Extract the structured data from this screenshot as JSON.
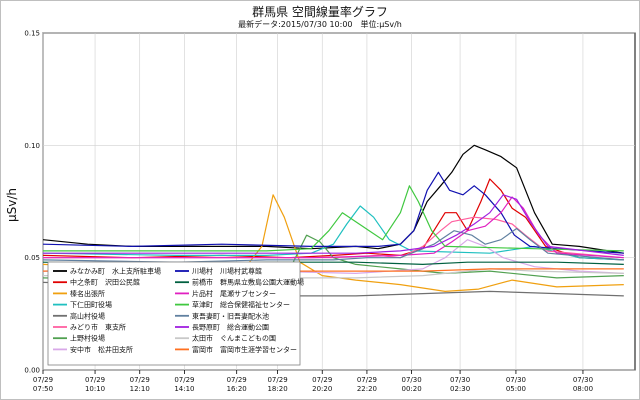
{
  "chart_data": {
    "type": "line",
    "title": "群馬県 空間線量率グラフ",
    "subtitle": "最新データ:2015/07/30 10:00　単位:μSv/h",
    "ylabel": "μSv/h",
    "xlabel": "",
    "ylim": [
      0,
      0.15
    ],
    "yticks": [
      "0.00",
      "0.05",
      "0.10",
      "0.15"
    ],
    "grid": true,
    "legend_position": "lower-left",
    "x_ticks": [
      {
        "t": 0,
        "date": "07/29",
        "time": "07:50"
      },
      {
        "t": 2.33,
        "date": "07/29",
        "time": "10:10"
      },
      {
        "t": 4.33,
        "date": "07/29",
        "time": "12:10"
      },
      {
        "t": 6.33,
        "date": "07/29",
        "time": "14:10"
      },
      {
        "t": 8.67,
        "date": "07/29",
        "time": "16:20"
      },
      {
        "t": 10.5,
        "date": "07/29",
        "time": "18:20"
      },
      {
        "t": 12.5,
        "date": "07/29",
        "time": "20:20"
      },
      {
        "t": 14.5,
        "date": "07/29",
        "time": "22:20"
      },
      {
        "t": 16.5,
        "date": "07/30",
        "time": "00:20"
      },
      {
        "t": 18.67,
        "date": "07/30",
        "time": "02:30"
      },
      {
        "t": 21.17,
        "date": "07/30",
        "time": "05:00"
      },
      {
        "t": 24.17,
        "date": "07/30",
        "time": "08:00"
      }
    ],
    "x_range": [
      0,
      26.5
    ],
    "series": [
      {
        "name": "みなかみ町　水上支所駐車場",
        "color": "#000000",
        "points": [
          [
            0,
            0.058
          ],
          [
            2,
            0.056
          ],
          [
            4,
            0.055
          ],
          [
            6,
            0.055
          ],
          [
            8,
            0.055
          ],
          [
            10,
            0.055
          ],
          [
            12,
            0.054
          ],
          [
            14,
            0.055
          ],
          [
            15,
            0.054
          ],
          [
            16,
            0.056
          ],
          [
            16.6,
            0.062
          ],
          [
            17.2,
            0.075
          ],
          [
            17.8,
            0.082
          ],
          [
            18.3,
            0.088
          ],
          [
            18.8,
            0.096
          ],
          [
            19.3,
            0.1
          ],
          [
            19.8,
            0.098
          ],
          [
            20.5,
            0.095
          ],
          [
            21.2,
            0.09
          ],
          [
            22,
            0.07
          ],
          [
            22.8,
            0.056
          ],
          [
            24,
            0.055
          ],
          [
            26,
            0.052
          ]
        ]
      },
      {
        "name": "中之条町　沢田公民館",
        "color": "#e00000",
        "points": [
          [
            0,
            0.051
          ],
          [
            4,
            0.05
          ],
          [
            8,
            0.051
          ],
          [
            11,
            0.05
          ],
          [
            13,
            0.051
          ],
          [
            14.5,
            0.052
          ],
          [
            16,
            0.051
          ],
          [
            17,
            0.054
          ],
          [
            17.5,
            0.062
          ],
          [
            18,
            0.07
          ],
          [
            18.5,
            0.07
          ],
          [
            19,
            0.062
          ],
          [
            19.6,
            0.075
          ],
          [
            20,
            0.085
          ],
          [
            20.5,
            0.08
          ],
          [
            21,
            0.072
          ],
          [
            21.6,
            0.068
          ],
          [
            22.5,
            0.055
          ],
          [
            24,
            0.05
          ],
          [
            26,
            0.049
          ]
        ]
      },
      {
        "name": "榛名出張所",
        "color": "#f0a010",
        "points": [
          [
            0,
            0.047
          ],
          [
            5,
            0.045
          ],
          [
            9,
            0.045
          ],
          [
            9.8,
            0.055
          ],
          [
            10.3,
            0.078
          ],
          [
            10.8,
            0.068
          ],
          [
            11.5,
            0.048
          ],
          [
            12.5,
            0.042
          ],
          [
            14,
            0.04
          ],
          [
            16,
            0.038
          ],
          [
            18,
            0.035
          ],
          [
            19.5,
            0.036
          ],
          [
            21,
            0.04
          ],
          [
            23,
            0.037
          ],
          [
            26,
            0.038
          ]
        ]
      },
      {
        "name": "下仁田町役場",
        "color": "#20c0c0",
        "points": [
          [
            0,
            0.052
          ],
          [
            6,
            0.051
          ],
          [
            10,
            0.051
          ],
          [
            12,
            0.052
          ],
          [
            13,
            0.056
          ],
          [
            13.6,
            0.065
          ],
          [
            14.2,
            0.073
          ],
          [
            14.8,
            0.068
          ],
          [
            15.5,
            0.058
          ],
          [
            16.5,
            0.053
          ],
          [
            20,
            0.052
          ],
          [
            22,
            0.055
          ],
          [
            24,
            0.05
          ],
          [
            26,
            0.049
          ]
        ]
      },
      {
        "name": "高山村役場",
        "color": "#707070",
        "points": [
          [
            0,
            0.039
          ],
          [
            4,
            0.038
          ],
          [
            9,
            0.037
          ],
          [
            9.8,
            0.04
          ],
          [
            10.5,
            0.036
          ],
          [
            11.5,
            0.033
          ],
          [
            14,
            0.033
          ],
          [
            17,
            0.034
          ],
          [
            20,
            0.035
          ],
          [
            23,
            0.034
          ],
          [
            26,
            0.033
          ]
        ]
      },
      {
        "name": "みどり市　東支所",
        "color": "#ff60a0",
        "points": [
          [
            0,
            0.05
          ],
          [
            6,
            0.05
          ],
          [
            10,
            0.05
          ],
          [
            13,
            0.05
          ],
          [
            15,
            0.051
          ],
          [
            16,
            0.05
          ],
          [
            17,
            0.055
          ],
          [
            17.8,
            0.062
          ],
          [
            18.3,
            0.066
          ],
          [
            19.3,
            0.068
          ],
          [
            20.3,
            0.067
          ],
          [
            21,
            0.065
          ],
          [
            21.6,
            0.06
          ],
          [
            22.5,
            0.053
          ],
          [
            26,
            0.05
          ]
        ]
      },
      {
        "name": "上野村役場",
        "color": "#50a050",
        "points": [
          [
            0,
            0.041
          ],
          [
            5,
            0.04
          ],
          [
            9.5,
            0.04
          ],
          [
            10.5,
            0.042
          ],
          [
            11.2,
            0.048
          ],
          [
            11.8,
            0.06
          ],
          [
            12.4,
            0.057
          ],
          [
            13,
            0.05
          ],
          [
            14,
            0.047
          ],
          [
            16,
            0.045
          ],
          [
            18,
            0.043
          ],
          [
            20,
            0.044
          ],
          [
            23,
            0.041
          ],
          [
            26,
            0.042
          ]
        ]
      },
      {
        "name": "安中市　松井田支所",
        "color": "#d8a8e8",
        "points": [
          [
            0,
            0.044
          ],
          [
            5,
            0.043
          ],
          [
            10,
            0.044
          ],
          [
            14,
            0.043
          ],
          [
            17,
            0.045
          ],
          [
            18,
            0.05
          ],
          [
            19,
            0.058
          ],
          [
            19.8,
            0.055
          ],
          [
            20.6,
            0.05
          ],
          [
            22,
            0.046
          ],
          [
            24,
            0.044
          ],
          [
            26,
            0.043
          ]
        ]
      },
      {
        "name": "川場村　川場村武尊館",
        "color": "#1010b0",
        "points": [
          [
            0,
            0.056
          ],
          [
            4,
            0.055
          ],
          [
            8,
            0.056
          ],
          [
            12,
            0.055
          ],
          [
            15,
            0.055
          ],
          [
            16,
            0.056
          ],
          [
            16.6,
            0.062
          ],
          [
            17.2,
            0.08
          ],
          [
            17.7,
            0.088
          ],
          [
            18.2,
            0.08
          ],
          [
            18.8,
            0.078
          ],
          [
            19.3,
            0.082
          ],
          [
            19.8,
            0.078
          ],
          [
            20.5,
            0.07
          ],
          [
            21.1,
            0.06
          ],
          [
            21.8,
            0.055
          ],
          [
            23,
            0.054
          ],
          [
            26,
            0.052
          ]
        ]
      },
      {
        "name": "前橋市　群馬県立敷島公園大運動場",
        "color": "#006040",
        "points": [
          [
            0,
            0.048
          ],
          [
            6,
            0.047
          ],
          [
            10,
            0.048
          ],
          [
            14,
            0.048
          ],
          [
            17,
            0.047
          ],
          [
            19,
            0.048
          ],
          [
            21,
            0.048
          ],
          [
            23,
            0.048
          ],
          [
            26,
            0.047
          ]
        ]
      },
      {
        "name": "片品村　尾瀬サブセンター",
        "color": "#e020c0",
        "points": [
          [
            0,
            0.05
          ],
          [
            8,
            0.05
          ],
          [
            12,
            0.05
          ],
          [
            16,
            0.051
          ],
          [
            17.5,
            0.052
          ],
          [
            18.3,
            0.057
          ],
          [
            19,
            0.062
          ],
          [
            19.8,
            0.064
          ],
          [
            20.5,
            0.07
          ],
          [
            21,
            0.077
          ],
          [
            21.5,
            0.072
          ],
          [
            22.2,
            0.06
          ],
          [
            23,
            0.052
          ],
          [
            26,
            0.05
          ]
        ]
      },
      {
        "name": "草津町　総合保健福祉センター",
        "color": "#40c840",
        "points": [
          [
            0,
            0.053
          ],
          [
            6,
            0.053
          ],
          [
            10,
            0.053
          ],
          [
            12,
            0.054
          ],
          [
            12.8,
            0.062
          ],
          [
            13.4,
            0.07
          ],
          [
            14,
            0.066
          ],
          [
            14.6,
            0.062
          ],
          [
            15.2,
            0.058
          ],
          [
            16,
            0.07
          ],
          [
            16.4,
            0.082
          ],
          [
            16.8,
            0.075
          ],
          [
            17.4,
            0.062
          ],
          [
            18,
            0.055
          ],
          [
            22,
            0.054
          ],
          [
            26,
            0.053
          ]
        ]
      },
      {
        "name": "東吾妻町・旧吾妻配水池",
        "color": "#6080a0",
        "points": [
          [
            0,
            0.049
          ],
          [
            6,
            0.048
          ],
          [
            10,
            0.049
          ],
          [
            13,
            0.049
          ],
          [
            14.5,
            0.05
          ],
          [
            16,
            0.05
          ],
          [
            17.5,
            0.056
          ],
          [
            18.4,
            0.062
          ],
          [
            19.2,
            0.06
          ],
          [
            19.8,
            0.056
          ],
          [
            20.5,
            0.058
          ],
          [
            21.2,
            0.063
          ],
          [
            21.8,
            0.058
          ],
          [
            22.6,
            0.052
          ],
          [
            26,
            0.049
          ]
        ]
      },
      {
        "name": "長野原町　総合運動公園",
        "color": "#a020e0",
        "points": [
          [
            0,
            0.052
          ],
          [
            6,
            0.052
          ],
          [
            10,
            0.052
          ],
          [
            14,
            0.052
          ],
          [
            16,
            0.053
          ],
          [
            17.5,
            0.055
          ],
          [
            18.5,
            0.06
          ],
          [
            19.3,
            0.065
          ],
          [
            20,
            0.07
          ],
          [
            20.6,
            0.078
          ],
          [
            21.2,
            0.076
          ],
          [
            21.8,
            0.066
          ],
          [
            22.6,
            0.055
          ],
          [
            26,
            0.051
          ]
        ]
      },
      {
        "name": "太田市　ぐんまこどもの国",
        "color": "#c8c8c8",
        "points": [
          [
            0,
            0.042
          ],
          [
            5,
            0.042
          ],
          [
            10,
            0.041
          ],
          [
            14,
            0.041
          ],
          [
            17,
            0.042
          ],
          [
            19,
            0.044
          ],
          [
            20,
            0.045
          ],
          [
            22,
            0.044
          ],
          [
            26,
            0.043
          ]
        ]
      },
      {
        "name": "富岡市　富岡市生涯学習センター",
        "color": "#ff7020",
        "points": [
          [
            0,
            0.044
          ],
          [
            5,
            0.045
          ],
          [
            9,
            0.044
          ],
          [
            13,
            0.044
          ],
          [
            17,
            0.044
          ],
          [
            20,
            0.045
          ],
          [
            23,
            0.045
          ],
          [
            26,
            0.045
          ]
        ]
      }
    ]
  }
}
